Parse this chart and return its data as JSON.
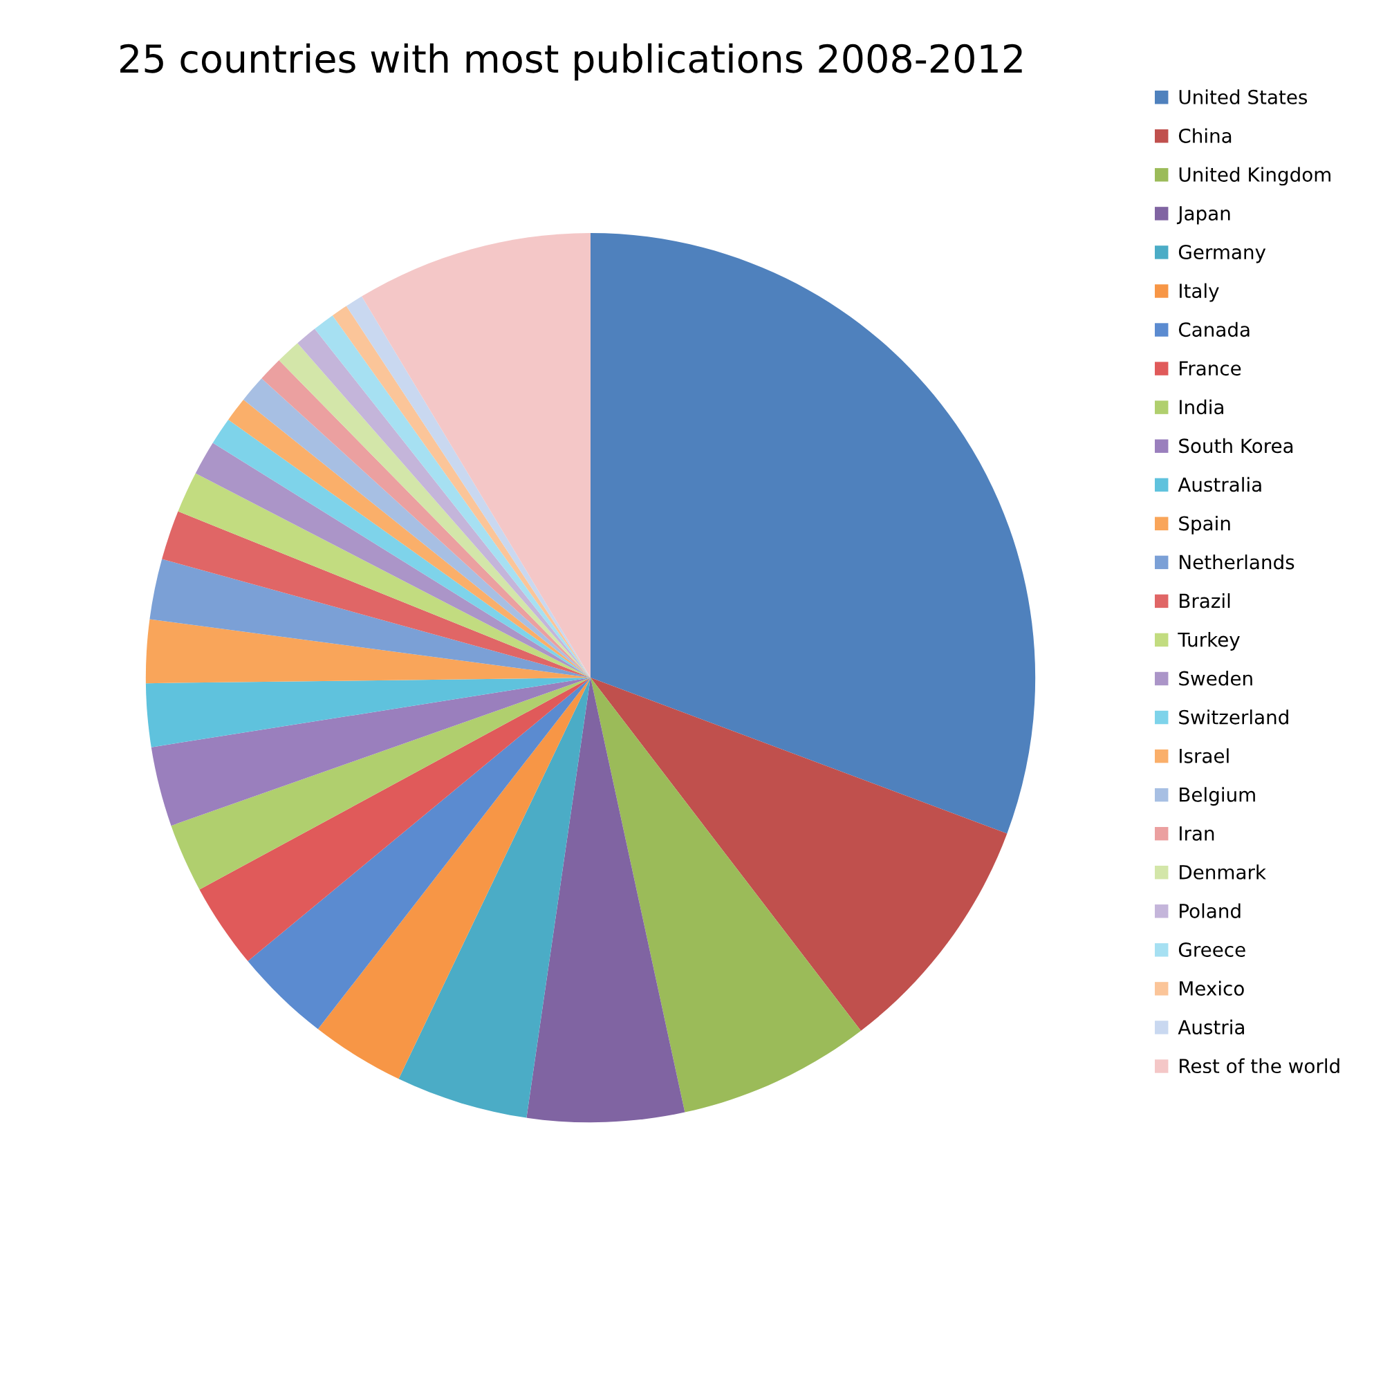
{
  "chart_data": {
    "type": "pie",
    "title": "25 countries with most publications 2008-2012",
    "categories": [
      "United States",
      "China",
      "United Kingdom",
      "Japan",
      "Germany",
      "Italy",
      "Canada",
      "France",
      "India",
      "South Korea",
      "Australia",
      "Spain",
      "Netherlands",
      "Brazil",
      "Turkey",
      "Sweden",
      "Switzerland",
      "Israel",
      "Belgium",
      "Iran",
      "Denmark",
      "Poland",
      "Greece",
      "Mexico",
      "Austria",
      "Rest of the world"
    ],
    "values": [
      30.7,
      8.9,
      7.0,
      5.7,
      4.8,
      3.4,
      3.5,
      3.1,
      2.5,
      2.9,
      2.3,
      2.3,
      2.2,
      1.8,
      1.5,
      1.25,
      1.0,
      0.9,
      1.0,
      0.9,
      0.9,
      0.8,
      0.8,
      0.6,
      0.65,
      8.6
    ],
    "colors": [
      "#4f81bd",
      "#c0504d",
      "#9bbb59",
      "#8064a2",
      "#4bacc6",
      "#f79646",
      "#5b8bd0",
      "#e05a5a",
      "#b0cf6e",
      "#9a7fbd",
      "#5fc2dd",
      "#f9a55a",
      "#7ba0d6",
      "#e06666",
      "#c2dc80",
      "#ab95c8",
      "#7ed3ea",
      "#faaf6a",
      "#a7bfe3",
      "#eba0a0",
      "#d3e6a9",
      "#c4b5da",
      "#a6e0f2",
      "#fbc599",
      "#c9d8f0",
      "#f4c7c7"
    ],
    "legend": "right"
  }
}
